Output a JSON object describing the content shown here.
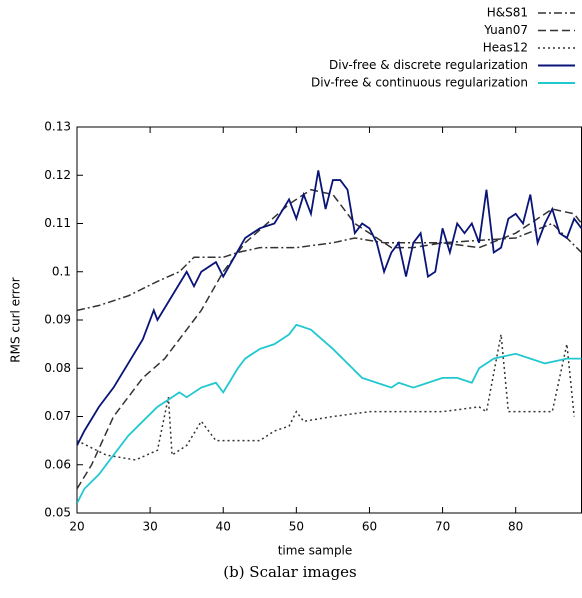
{
  "chart_data": {
    "type": "line",
    "caption": "(b) Scalar images",
    "x_label": "time sample",
    "y_label": "RMS curl error",
    "xlim": [
      20,
      89
    ],
    "ylim": [
      0.05,
      0.13
    ],
    "xticks": [
      20,
      30,
      40,
      50,
      60,
      70,
      80
    ],
    "yticks": [
      0.05,
      0.06,
      0.07,
      0.08,
      0.09,
      0.1,
      0.11,
      0.12,
      0.13
    ],
    "series": [
      {
        "name": "H&S81",
        "color": "#333333",
        "dash": "8,3,2,3",
        "x": [
          20,
          23,
          27,
          31,
          34,
          36,
          40,
          42,
          45,
          50,
          55,
          58,
          62,
          70,
          80,
          85,
          87,
          89
        ],
        "values": [
          0.092,
          0.093,
          0.095,
          0.098,
          0.1,
          0.103,
          0.103,
          0.104,
          0.105,
          0.105,
          0.106,
          0.107,
          0.106,
          0.106,
          0.107,
          0.11,
          0.107,
          0.104
        ]
      },
      {
        "name": "Yuan07",
        "color": "#333333",
        "dash": "8,4",
        "x": [
          20,
          22,
          25,
          29,
          32,
          34,
          37,
          40,
          43,
          46,
          49,
          52,
          55,
          58,
          60,
          63,
          66,
          70,
          75,
          80,
          85,
          88,
          89
        ],
        "values": [
          0.055,
          0.06,
          0.07,
          0.078,
          0.082,
          0.086,
          0.092,
          0.1,
          0.106,
          0.11,
          0.114,
          0.117,
          0.116,
          0.11,
          0.108,
          0.105,
          0.105,
          0.106,
          0.105,
          0.108,
          0.113,
          0.112,
          0.11
        ]
      },
      {
        "name": "Heas12",
        "color": "#333333",
        "dash": "2,3",
        "x": [
          20,
          24,
          28,
          31,
          32.5,
          33,
          35,
          37,
          39,
          45,
          47,
          49,
          50,
          51,
          55,
          60,
          70,
          75,
          76,
          78,
          79,
          85,
          87,
          88
        ],
        "values": [
          0.065,
          0.062,
          0.061,
          0.063,
          0.074,
          0.062,
          0.064,
          0.069,
          0.065,
          0.065,
          0.067,
          0.068,
          0.071,
          0.069,
          0.07,
          0.071,
          0.071,
          0.072,
          0.071,
          0.087,
          0.071,
          0.071,
          0.085,
          0.07
        ]
      },
      {
        "name": "Div-free & discrete regularization",
        "color": "#0a1478",
        "dash": "none",
        "x": [
          20,
          21,
          23,
          25,
          27,
          29,
          30.5,
          31,
          33,
          35,
          36,
          37,
          39,
          40,
          43,
          45,
          47,
          49,
          50,
          51,
          52,
          53,
          54,
          55,
          56,
          57,
          58,
          59,
          60,
          61,
          62,
          63,
          64,
          65,
          66,
          67,
          68,
          69,
          70,
          71,
          72,
          73,
          74,
          75,
          76,
          77,
          78,
          79,
          80,
          81,
          82,
          83,
          84,
          85,
          86,
          87,
          88,
          89
        ],
        "values": [
          0.064,
          0.067,
          0.072,
          0.076,
          0.081,
          0.086,
          0.092,
          0.09,
          0.095,
          0.1,
          0.097,
          0.1,
          0.102,
          0.099,
          0.107,
          0.109,
          0.11,
          0.115,
          0.111,
          0.116,
          0.112,
          0.121,
          0.113,
          0.119,
          0.119,
          0.117,
          0.108,
          0.11,
          0.109,
          0.106,
          0.1,
          0.104,
          0.106,
          0.099,
          0.106,
          0.108,
          0.099,
          0.1,
          0.109,
          0.104,
          0.11,
          0.108,
          0.11,
          0.106,
          0.117,
          0.104,
          0.105,
          0.111,
          0.112,
          0.11,
          0.116,
          0.106,
          0.11,
          0.113,
          0.108,
          0.107,
          0.111,
          0.109
        ]
      },
      {
        "name": "Div-free & continuous regularization",
        "color": "#22c8d0",
        "dash": "none",
        "x": [
          20,
          21,
          23,
          25,
          27,
          29,
          31,
          33,
          34,
          35,
          37,
          39,
          40,
          42,
          43,
          45,
          47,
          49,
          50,
          52,
          55,
          57,
          59,
          61,
          63,
          64,
          66,
          68,
          70,
          72,
          74,
          75,
          77,
          80,
          82,
          84,
          87,
          89
        ],
        "values": [
          0.052,
          0.055,
          0.058,
          0.062,
          0.066,
          0.069,
          0.072,
          0.074,
          0.075,
          0.074,
          0.076,
          0.077,
          0.075,
          0.08,
          0.082,
          0.084,
          0.085,
          0.087,
          0.089,
          0.088,
          0.084,
          0.081,
          0.078,
          0.077,
          0.076,
          0.077,
          0.076,
          0.077,
          0.078,
          0.078,
          0.077,
          0.08,
          0.082,
          0.083,
          0.082,
          0.081,
          0.082,
          0.082
        ]
      }
    ]
  }
}
